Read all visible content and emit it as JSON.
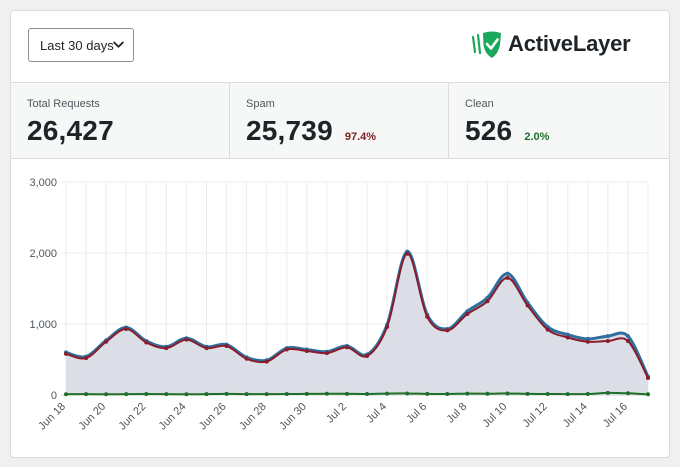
{
  "range_select": {
    "label": "Last 30 days",
    "icon": "chevron-down-icon"
  },
  "brand": {
    "name": "ActiveLayer",
    "icon": "shield-check-icon",
    "color": "#1aa85c"
  },
  "stats": {
    "total": {
      "label": "Total Requests",
      "value": "26,427"
    },
    "spam": {
      "label": "Spam",
      "value": "25,739",
      "percent": "97.4%",
      "color": "#7b1d1d"
    },
    "clean": {
      "label": "Clean",
      "value": "526",
      "percent": "2.0%",
      "color": "#1e6f2a"
    }
  },
  "chart_data": {
    "type": "line",
    "x": [
      "Jun 18",
      "Jun 19",
      "Jun 20",
      "Jun 21",
      "Jun 22",
      "Jun 23",
      "Jun 24",
      "Jun 25",
      "Jun 26",
      "Jun 27",
      "Jun 28",
      "Jun 29",
      "Jun 30",
      "Jul 1",
      "Jul 2",
      "Jul 3",
      "Jul 4",
      "Jul 5",
      "Jul 6",
      "Jul 7",
      "Jul 8",
      "Jul 9",
      "Jul 10",
      "Jul 11",
      "Jul 12",
      "Jul 13",
      "Jul 14",
      "Jul 15",
      "Jul 16",
      "Jul 17"
    ],
    "x_tick_labels": [
      "Jun 18",
      "Jun 20",
      "Jun 22",
      "Jun 24",
      "Jun 26",
      "Jun 28",
      "Jun 30",
      "Jul 2",
      "Jul 4",
      "Jul 6",
      "Jul 8",
      "Jul 10",
      "Jul 12",
      "Jul 14",
      "Jul 16"
    ],
    "y_ticks": [
      "0",
      "1,000",
      "2,000",
      "3,000"
    ],
    "ylim": [
      0,
      3000
    ],
    "grid": true,
    "legend": "none",
    "series": [
      {
        "color": "#2f6f9f",
        "fill": "#d9dce5",
        "values": [
          600,
          540,
          770,
          950,
          760,
          680,
          800,
          680,
          710,
          530,
          490,
          660,
          640,
          610,
          690,
          570,
          990,
          2020,
          1130,
          930,
          1180,
          1370,
          1710,
          1300,
          960,
          850,
          790,
          830,
          830,
          260
        ]
      },
      {
        "color": "#8a1c2b",
        "values": [
          580,
          520,
          750,
          930,
          740,
          660,
          780,
          660,
          690,
          510,
          470,
          640,
          620,
          590,
          670,
          550,
          960,
          1990,
          1100,
          910,
          1140,
          1320,
          1650,
          1260,
          920,
          810,
          750,
          760,
          760,
          240
        ]
      },
      {
        "color": "#1e6f2a",
        "values": [
          10,
          12,
          10,
          12,
          14,
          12,
          10,
          12,
          15,
          12,
          12,
          14,
          15,
          18,
          16,
          14,
          20,
          22,
          16,
          14,
          20,
          18,
          22,
          16,
          14,
          12,
          14,
          30,
          24,
          10
        ]
      }
    ]
  }
}
